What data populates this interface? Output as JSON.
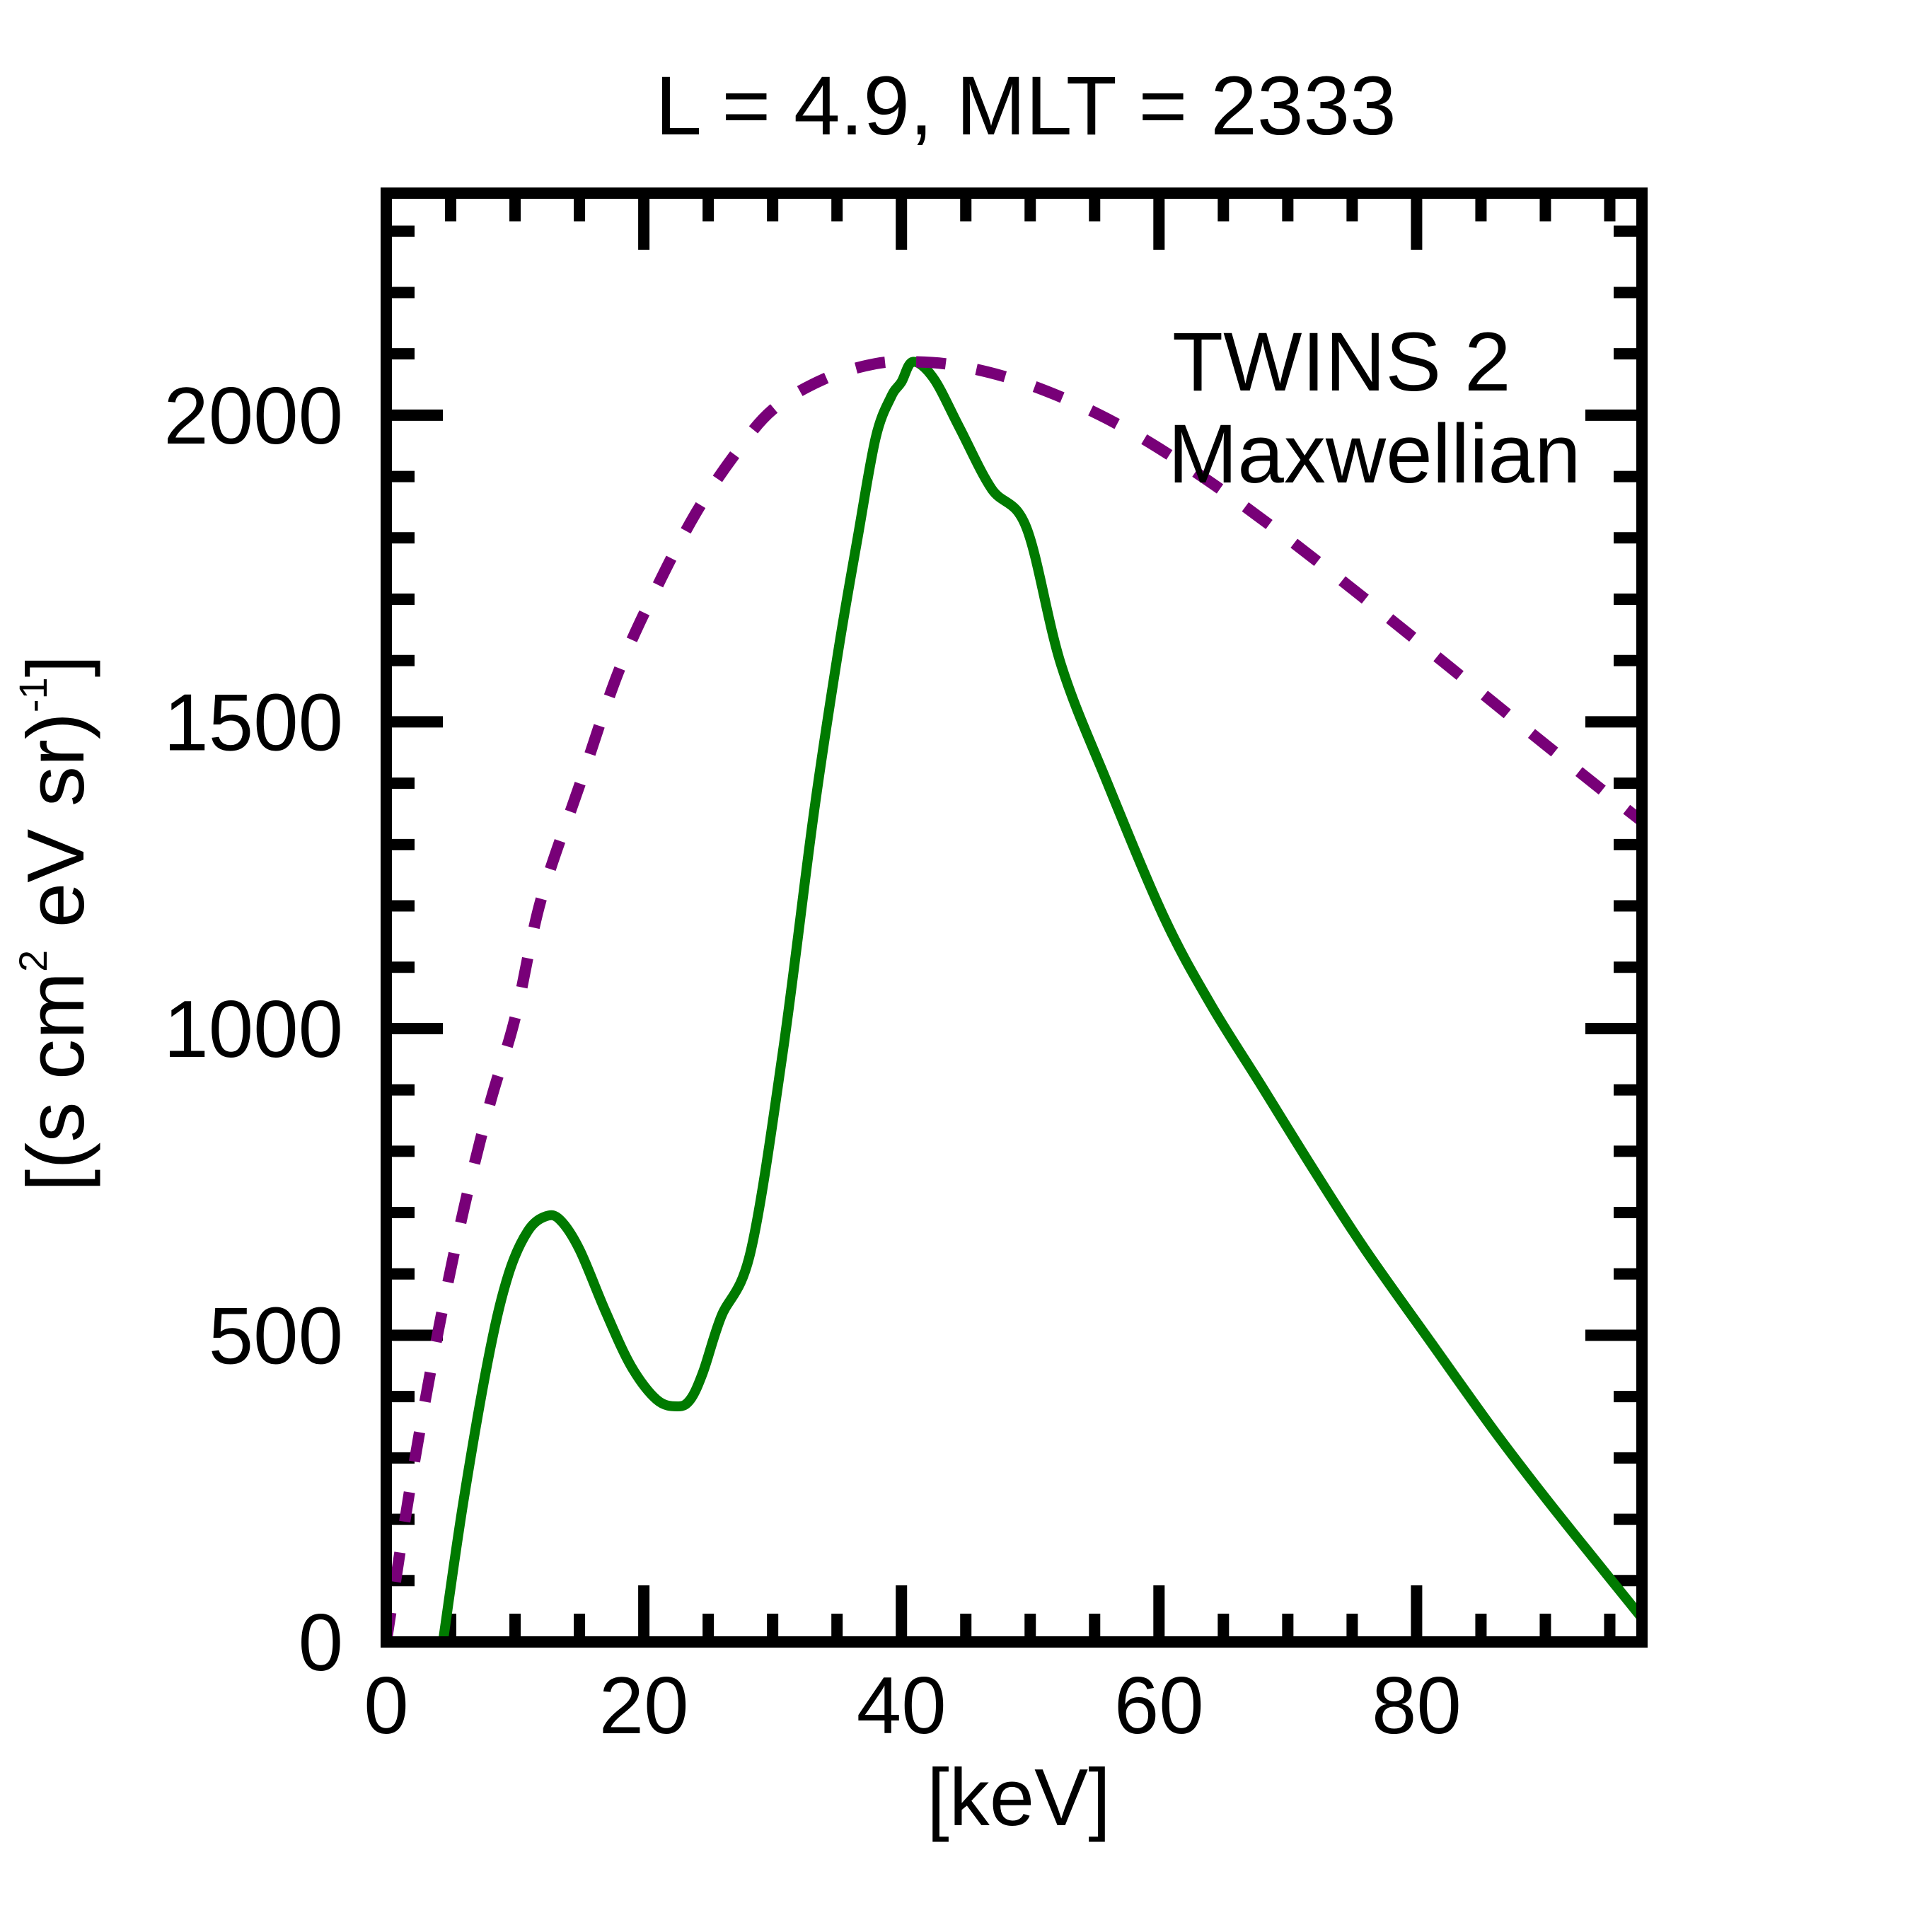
{
  "chart_data": {
    "type": "line",
    "title": "L =  4.9, MLT = 2333",
    "xlabel": "[keV]",
    "ylabel": {
      "parts": [
        "[(s cm",
        "2",
        " eV sr)",
        "-1",
        "]"
      ],
      "text": "[(s cm^2 eV sr)^-1]"
    },
    "xlim": [
      0,
      97.5
    ],
    "ylim": [
      0,
      2362
    ],
    "grid": false,
    "x_ticks": {
      "major": [
        0,
        20,
        40,
        60,
        80
      ],
      "labels": [
        "0",
        "20",
        "40",
        "60",
        "80"
      ],
      "minor_step": 5
    },
    "y_ticks": {
      "major": [
        0,
        500,
        1000,
        1500,
        2000
      ],
      "labels": [
        "0",
        "500",
        "1000",
        "1500",
        "2000"
      ],
      "minor_step": 100
    },
    "legend": {
      "placement": "top-right",
      "entries": [
        {
          "label": "TWINS 2",
          "color": "#007a00"
        },
        {
          "label": "Maxwellian",
          "color": "#780078"
        }
      ]
    },
    "series": [
      {
        "name": "TWINS 2",
        "color": "#007a00",
        "style": "solid",
        "x": [
          4.4,
          6,
          8,
          9.5,
          11,
          12.4,
          13.5,
          15,
          17,
          19,
          21,
          22.6,
          23.6,
          24.6,
          26,
          28.3,
          30.8,
          33.2,
          35.1,
          36.6,
          38.0,
          39.2,
          40.0,
          40.9,
          42.5,
          44.5,
          47,
          49.7,
          52.4,
          56,
          60.4,
          64,
          67.8,
          72,
          76,
          81.2,
          86,
          90,
          94,
          97.5
        ],
        "y": [
          0,
          230,
          470,
          600,
          670,
          694,
          688,
          640,
          540,
          450,
          395,
          384,
          395,
          440,
          530,
          637,
          963,
          1351,
          1616,
          1800,
          1963,
          2030,
          2054,
          2087,
          2060,
          1980,
          1880,
          1817,
          1593,
          1400,
          1181,
          1040,
          912,
          770,
          640,
          486,
          345,
          235,
          130,
          39
        ]
      },
      {
        "name": "Maxwellian",
        "color": "#780078",
        "style": "dashed",
        "model": "y = 2087 * (E/40.9) * exp(1 - E/40.9)",
        "x": [
          0,
          2,
          4,
          6,
          8,
          10,
          12,
          15,
          18,
          21,
          24,
          27,
          30,
          34,
          38,
          40.9,
          44,
          48,
          52,
          56,
          60,
          65,
          70,
          75,
          80,
          85,
          90,
          95,
          97.5
        ],
        "y": [
          0,
          270,
          503,
          704,
          874,
          1017,
          1209,
          1396,
          1580,
          1719,
          1839,
          1934,
          2009,
          2059,
          2084,
          2087,
          2082,
          2063,
          2033,
          1994,
          1946,
          1876,
          1799,
          1717,
          1633,
          1548,
          1463,
          1379,
          1338
        ]
      }
    ]
  }
}
